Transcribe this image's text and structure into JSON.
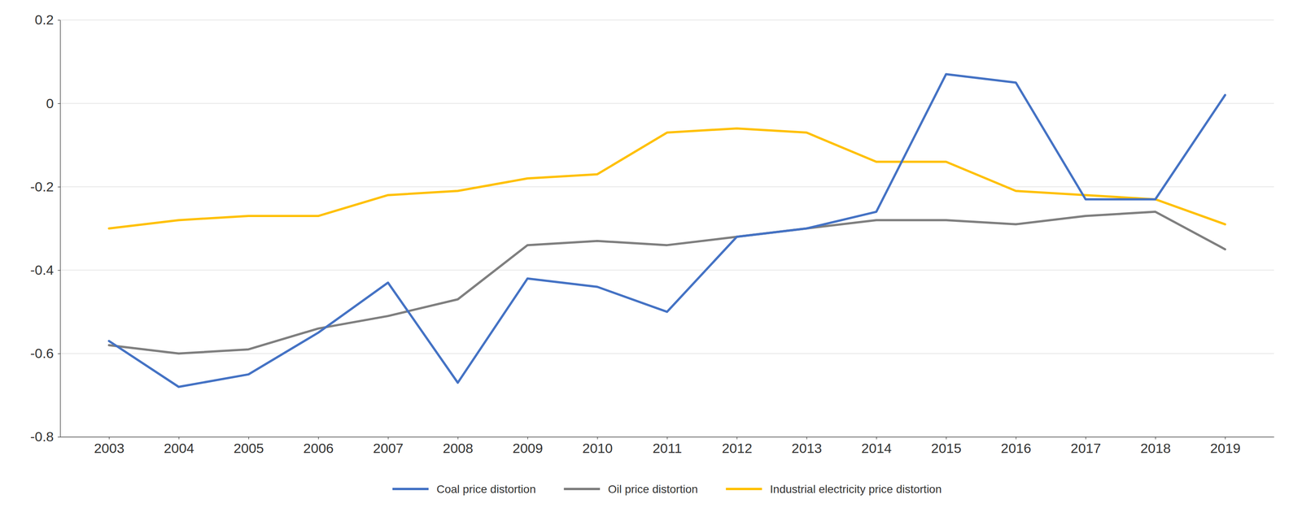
{
  "chart_data": {
    "type": "line",
    "x": [
      2003,
      2004,
      2005,
      2006,
      2007,
      2008,
      2009,
      2010,
      2011,
      2012,
      2013,
      2014,
      2015,
      2016,
      2017,
      2018,
      2019
    ],
    "series": [
      {
        "name": "Coal price distortion",
        "color": "#4472C4",
        "values": [
          -0.57,
          -0.68,
          -0.65,
          -0.55,
          -0.43,
          -0.67,
          -0.42,
          -0.44,
          -0.5,
          -0.32,
          -0.3,
          -0.26,
          0.07,
          0.05,
          -0.23,
          -0.23,
          0.02
        ]
      },
      {
        "name": "Oil price distortion",
        "color": "#7F7F7F",
        "values": [
          -0.58,
          -0.6,
          -0.59,
          -0.54,
          -0.51,
          -0.47,
          -0.34,
          -0.33,
          -0.34,
          -0.32,
          -0.3,
          -0.28,
          -0.28,
          -0.29,
          -0.27,
          -0.26,
          -0.35
        ]
      },
      {
        "name": "Industrial electricity price distortion",
        "color": "#FFC000",
        "values": [
          -0.3,
          -0.28,
          -0.27,
          -0.27,
          -0.22,
          -0.21,
          -0.18,
          -0.17,
          -0.07,
          -0.06,
          -0.07,
          -0.14,
          -0.14,
          -0.21,
          -0.22,
          -0.23,
          -0.29
        ]
      }
    ],
    "xlim": [
      2002.3,
      2019.7
    ],
    "xticks": [
      2003,
      2004,
      2005,
      2006,
      2007,
      2008,
      2009,
      2010,
      2011,
      2012,
      2013,
      2014,
      2015,
      2016,
      2017,
      2018,
      2019
    ],
    "ylim": [
      -0.8,
      0.2
    ],
    "yticks": [
      -0.8,
      -0.6,
      -0.4,
      -0.2,
      0.0,
      0.2
    ],
    "grid": true,
    "legend": "bottom"
  }
}
